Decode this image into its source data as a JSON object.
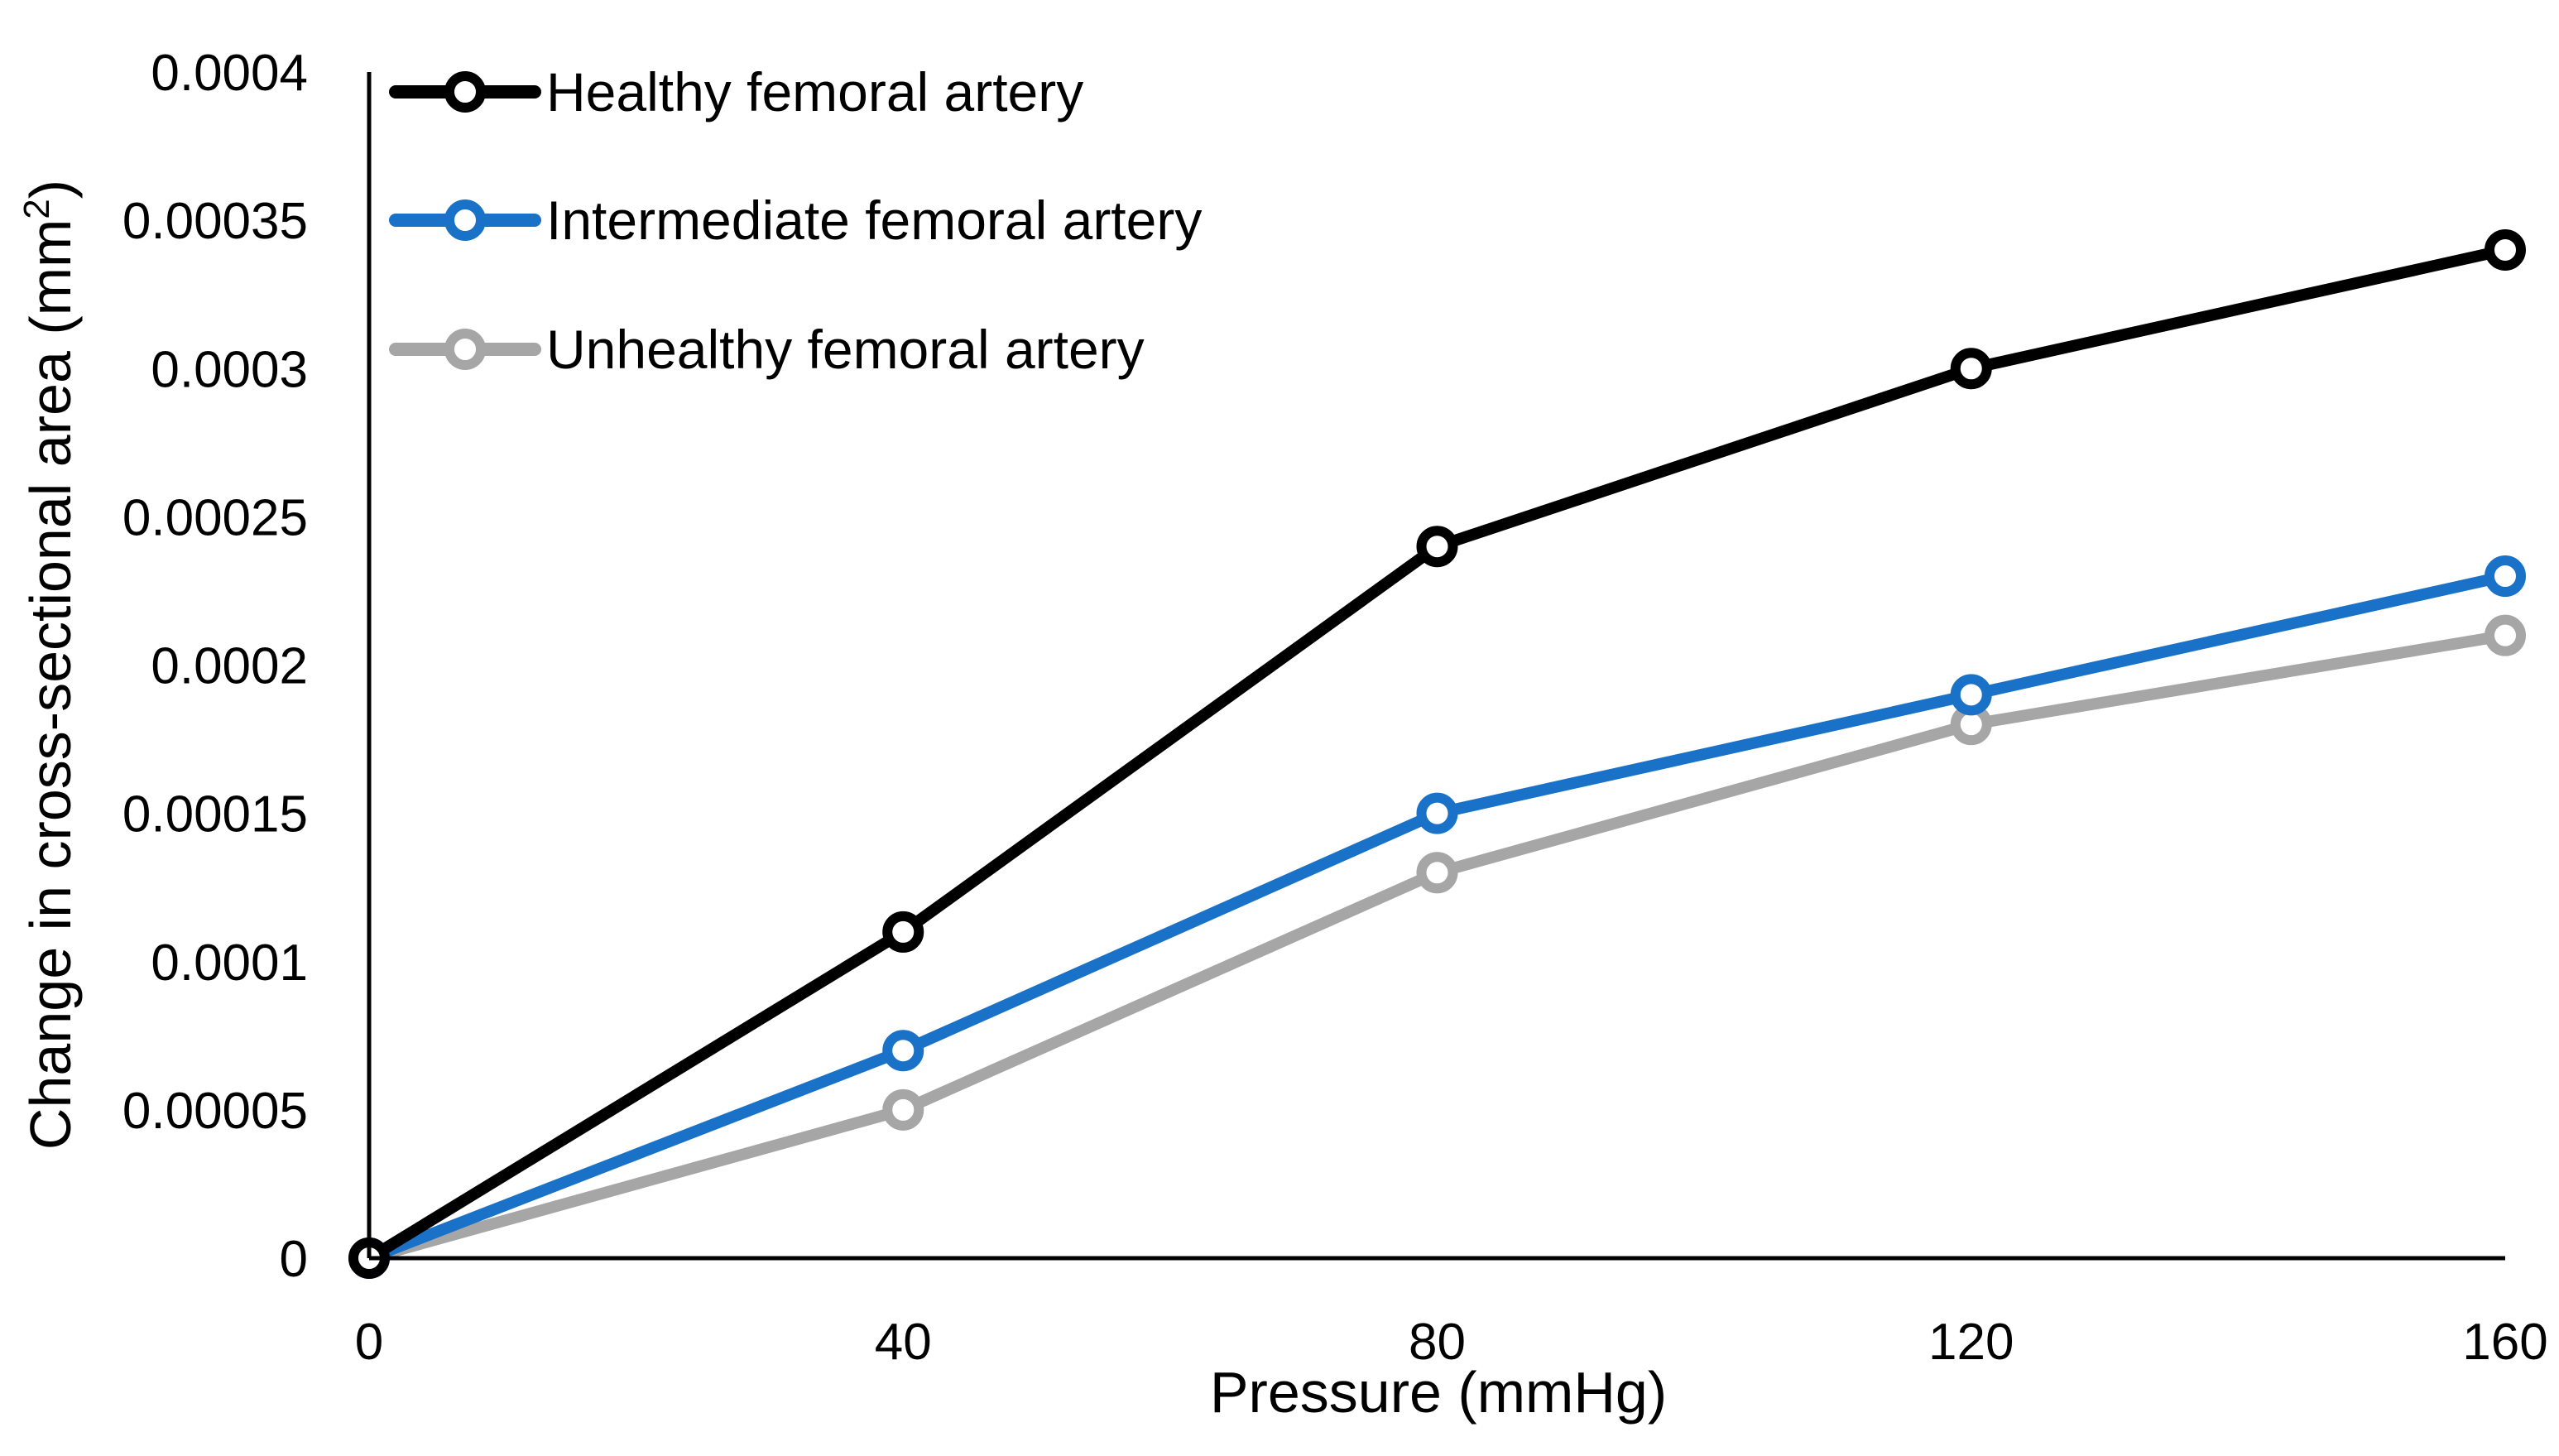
{
  "chart_data": {
    "type": "line",
    "title": "",
    "xlabel": "Pressure (mmHg)",
    "ylabel": {
      "main": "Change in cross-sectional area (mm",
      "sup": "2",
      "close": ")"
    },
    "x": [
      0,
      40,
      80,
      120,
      160
    ],
    "xlim": [
      0,
      160
    ],
    "ylim": [
      0,
      0.0004
    ],
    "x_ticks": [
      "0",
      "40",
      "80",
      "120",
      "160"
    ],
    "y_ticks": [
      "0",
      "0.00005",
      "0.0001",
      "0.00015",
      "0.0002",
      "0.00025",
      "0.0003",
      "0.00035",
      "0.0004"
    ],
    "y_tick_values": [
      0,
      5e-05,
      0.0001,
      0.00015,
      0.0002,
      0.00025,
      0.0003,
      0.00035,
      0.0004
    ],
    "grid": false,
    "legend_position": "top-left",
    "series": [
      {
        "name": "Healthy femoral artery",
        "color": "#000000",
        "values": [
          0,
          0.00011,
          0.00024,
          0.0003,
          0.00034
        ]
      },
      {
        "name": "Intermediate femoral artery",
        "color": "#1a72c8",
        "values": [
          0,
          7e-05,
          0.00015,
          0.00019,
          0.00023
        ]
      },
      {
        "name": "Unhealthy femoral artery",
        "color": "#a6a6a6",
        "values": [
          0,
          5e-05,
          0.00013,
          0.00018,
          0.00021
        ]
      }
    ]
  }
}
